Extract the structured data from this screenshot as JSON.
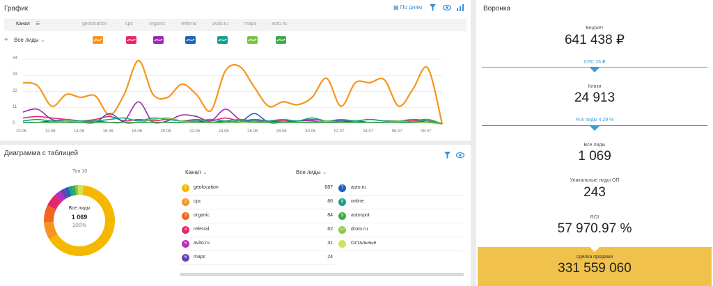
{
  "graph": {
    "title": "График",
    "by_days": "По дням",
    "header": {
      "channel": "Канал",
      "channels": [
        "geolocation",
        "cpc",
        "organic",
        "referral",
        "avito.ru",
        "maps",
        "auto.ru"
      ]
    },
    "row_label": "Все лиды",
    "chip_colors": [
      "#f7941d",
      "#e6266e",
      "#9c27b0",
      "#1e63b8",
      "#189e8e",
      "#7cc242",
      "#42a84d"
    ]
  },
  "chart_data": {
    "type": "line",
    "x": [
      "10.06",
      "11.06",
      "12.06",
      "13.06",
      "14.06",
      "15.06",
      "16.06",
      "17.06",
      "18.06",
      "19.06",
      "20.06",
      "21.06",
      "22.06",
      "23.06",
      "24.06",
      "25.06",
      "26.06",
      "27.06",
      "28.06",
      "29.06",
      "30.06",
      "01.07",
      "02.07",
      "03.07",
      "04.07",
      "05.07",
      "06.07",
      "07.07",
      "08.07",
      "09.07"
    ],
    "x_ticks": [
      "10.06",
      "12.06",
      "14.06",
      "16.06",
      "18.06",
      "20.06",
      "22.06",
      "24.06",
      "26.06",
      "28.06",
      "30.06",
      "02.07",
      "04.07",
      "06.07",
      "08.07"
    ],
    "ylim": [
      0,
      44
    ],
    "y_ticks": [
      "44",
      "33",
      "22",
      "11",
      "0"
    ],
    "series": [
      {
        "name": "geolocation",
        "color": "#f7941d",
        "values": [
          28,
          26,
          12,
          20,
          18,
          19,
          6,
          20,
          43,
          20,
          18,
          27,
          20,
          9,
          36,
          39,
          25,
          12,
          15,
          13,
          18,
          31,
          12,
          28,
          28,
          30,
          12,
          24,
          38,
          0
        ]
      },
      {
        "name": "cpc",
        "color": "#e6266e",
        "values": [
          4,
          5,
          4,
          3,
          2,
          3,
          5,
          2,
          3,
          2,
          3,
          2,
          3,
          2,
          4,
          2,
          3,
          2,
          2,
          2,
          3,
          2,
          2,
          2,
          3,
          2,
          2,
          2,
          3,
          0
        ]
      },
      {
        "name": "organic",
        "color": "#9c27b0",
        "values": [
          8,
          10,
          3,
          2,
          1,
          2,
          1,
          2,
          15,
          1,
          2,
          6,
          5,
          2,
          10,
          3,
          2,
          2,
          1,
          2,
          2,
          1,
          1,
          2,
          1,
          1,
          2,
          1,
          2,
          0
        ]
      },
      {
        "name": "referral",
        "color": "#1e63b8",
        "values": [
          1,
          1,
          2,
          1,
          1,
          1,
          7,
          1,
          1,
          1,
          1,
          1,
          2,
          1,
          2,
          1,
          7,
          1,
          1,
          1,
          1,
          1,
          2,
          1,
          1,
          1,
          1,
          1,
          1,
          0
        ]
      },
      {
        "name": "avito.ru",
        "color": "#189e8e",
        "values": [
          2,
          3,
          2,
          3,
          2,
          2,
          3,
          4,
          2,
          4,
          3,
          2,
          2,
          3,
          2,
          3,
          2,
          2,
          3,
          2,
          4,
          2,
          3,
          2,
          3,
          2,
          2,
          3,
          2,
          0
        ]
      },
      {
        "name": "maps",
        "color": "#7cc242",
        "values": [
          1,
          1,
          1,
          2,
          1,
          1,
          1,
          1,
          1,
          3,
          4,
          2,
          1,
          1,
          1,
          1,
          1,
          1,
          1,
          1,
          1,
          2,
          1,
          1,
          1,
          1,
          2,
          1,
          1,
          0
        ]
      },
      {
        "name": "auto.ru",
        "color": "#42a84d",
        "values": [
          1,
          1,
          1,
          1,
          1,
          1,
          1,
          1,
          1,
          1,
          1,
          1,
          1,
          1,
          1,
          2,
          1,
          1,
          1,
          1,
          1,
          1,
          1,
          1,
          1,
          1,
          1,
          1,
          3,
          0
        ]
      }
    ]
  },
  "diagram": {
    "title": "Диаграмма с таблицей",
    "top_label": "Топ 10",
    "center_label": "Все лиды",
    "center_value": "1 069",
    "center_pct": "100%",
    "col_channel": "Канал",
    "col_leads": "Все лиды",
    "rows_left": [
      {
        "n": "1",
        "name": "geolocation",
        "value": "687",
        "color": "#f5b800"
      },
      {
        "n": "2",
        "name": "cpc",
        "value": "86",
        "color": "#f7941d"
      },
      {
        "n": "3",
        "name": "organic",
        "value": "84",
        "color": "#f26522"
      },
      {
        "n": "4",
        "name": "referral",
        "value": "62",
        "color": "#e6266e"
      },
      {
        "n": "5",
        "name": "avito.ru",
        "value": "31",
        "color": "#b62ebf"
      },
      {
        "n": "6",
        "name": "maps",
        "value": "24",
        "color": "#6a3fb5"
      }
    ],
    "rows_right": [
      {
        "n": "7",
        "name": "auto.ru",
        "color": "#1e63b8"
      },
      {
        "n": "8",
        "name": "online",
        "color": "#189e8e"
      },
      {
        "n": "9",
        "name": "autospot",
        "color": "#42a84d"
      },
      {
        "n": "10",
        "name": "drom.ru",
        "color": "#8cc63f"
      },
      {
        "n": "",
        "name": "Остальные",
        "color": "#d4e157"
      }
    ],
    "donut": [
      687,
      86,
      84,
      62,
      31,
      24,
      20,
      18,
      16,
      14,
      27
    ]
  },
  "funnel": {
    "title": "Воронка",
    "budget_label": "Бюджет",
    "budget": "641 438 ₽",
    "cpc": "CPC 26 ₽",
    "clicks_label": "Клики",
    "clicks": "24 913",
    "conv": "% в лиды 4.29 %",
    "leads_label": "Все лиды",
    "leads": "1 069",
    "unique_label": "Уникальные лиды ОП",
    "unique": "243",
    "roi_label": "ROI",
    "roi": "57 970.97 %",
    "sale_label": "сделка продажи",
    "sale": "331 559 060"
  }
}
